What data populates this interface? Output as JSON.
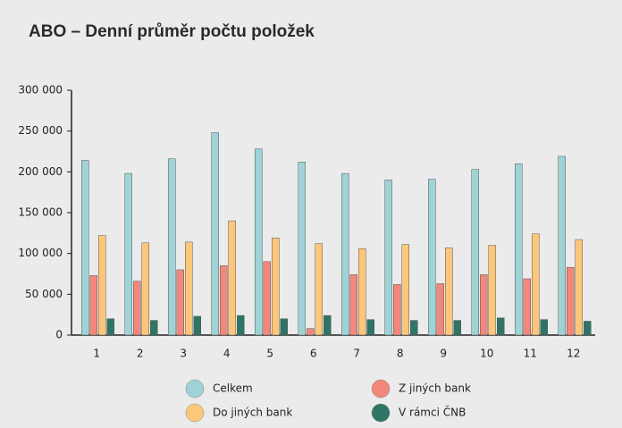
{
  "chart_data": {
    "type": "bar",
    "title": "ABO – Denní průměr počtu položek",
    "categories": [
      "1",
      "2",
      "3",
      "4",
      "5",
      "6",
      "7",
      "8",
      "9",
      "10",
      "11",
      "12"
    ],
    "series": [
      {
        "name": "Celkem",
        "color": "#9fd3d5",
        "values": [
          214000,
          198000,
          216000,
          248000,
          228000,
          212000,
          198000,
          190000,
          191000,
          203000,
          210000,
          219000
        ]
      },
      {
        "name": "Z jiných bank",
        "color": "#f2877b",
        "values": [
          73000,
          66000,
          80000,
          85000,
          90000,
          8000,
          74000,
          62000,
          63000,
          74000,
          69000,
          83000
        ]
      },
      {
        "name": "Do jiných bank",
        "color": "#fcc77a",
        "values": [
          122000,
          113000,
          114000,
          140000,
          119000,
          112000,
          106000,
          111000,
          107000,
          110000,
          124000,
          117000
        ]
      },
      {
        "name": "V rámci ČNB",
        "color": "#2f7565",
        "values": [
          20000,
          18000,
          23000,
          24000,
          20000,
          24000,
          19000,
          18000,
          18000,
          21000,
          19000,
          17000
        ]
      }
    ],
    "ylim": [
      0,
      300000
    ],
    "yticks": [
      {
        "value": 0,
        "label": "0"
      },
      {
        "value": 50000,
        "label": "50 000"
      },
      {
        "value": 100000,
        "label": "100 000"
      },
      {
        "value": 150000,
        "label": "150 000"
      },
      {
        "value": 200000,
        "label": "200 000"
      },
      {
        "value": 250000,
        "label": "250 000"
      },
      {
        "value": 300000,
        "label": "300 000"
      }
    ]
  }
}
